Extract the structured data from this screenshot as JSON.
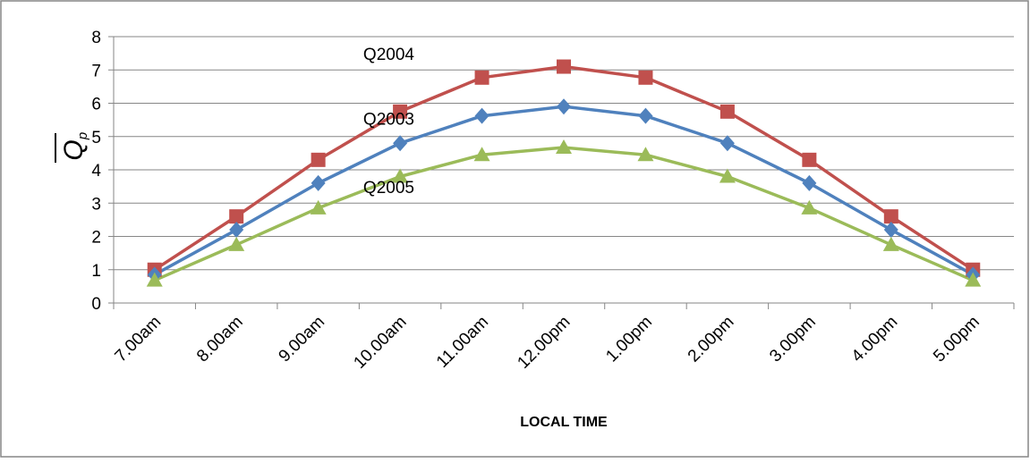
{
  "chart_data": {
    "type": "line",
    "title": "",
    "xlabel": "LOCAL TIME",
    "ylabel": "Q",
    "ylabel_subscript": "p",
    "ylim": [
      0,
      8
    ],
    "yticks": [
      "0",
      "1",
      "2",
      "3",
      "4",
      "5",
      "6",
      "7",
      "8"
    ],
    "grid": "horizontal",
    "legend": "none",
    "categories": [
      "7.00am",
      "8.00am",
      "9.00am",
      "10.00am",
      "11.00am",
      "12.00pm",
      "1.00pm",
      "2.00pm",
      "3.00pm",
      "4.00pm",
      "5.00pm"
    ],
    "series": [
      {
        "name": "Q2004",
        "color": "#c0504d",
        "marker": "square",
        "values": [
          1.0,
          2.6,
          4.3,
          5.75,
          6.77,
          7.1,
          6.77,
          5.75,
          4.3,
          2.6,
          1.0
        ]
      },
      {
        "name": "Q2003",
        "color": "#4f81bd",
        "marker": "diamond",
        "values": [
          0.85,
          2.2,
          3.6,
          4.8,
          5.62,
          5.9,
          5.62,
          4.8,
          3.6,
          2.2,
          0.85
        ]
      },
      {
        "name": "Q2005",
        "color": "#9bbb59",
        "marker": "triangle",
        "values": [
          0.68,
          1.75,
          2.85,
          3.8,
          4.45,
          4.67,
          4.45,
          3.8,
          2.85,
          1.75,
          0.68
        ]
      }
    ],
    "annotations": [
      {
        "text": "Q2004",
        "series": 0,
        "anchor_index": 3.05,
        "anchor_value": 7.3
      },
      {
        "text": "Q2003",
        "series": 1,
        "anchor_index": 3.05,
        "anchor_value": 5.35
      },
      {
        "text": "Q2005",
        "series": 2,
        "anchor_index": 3.05,
        "anchor_value": 3.3
      }
    ]
  }
}
